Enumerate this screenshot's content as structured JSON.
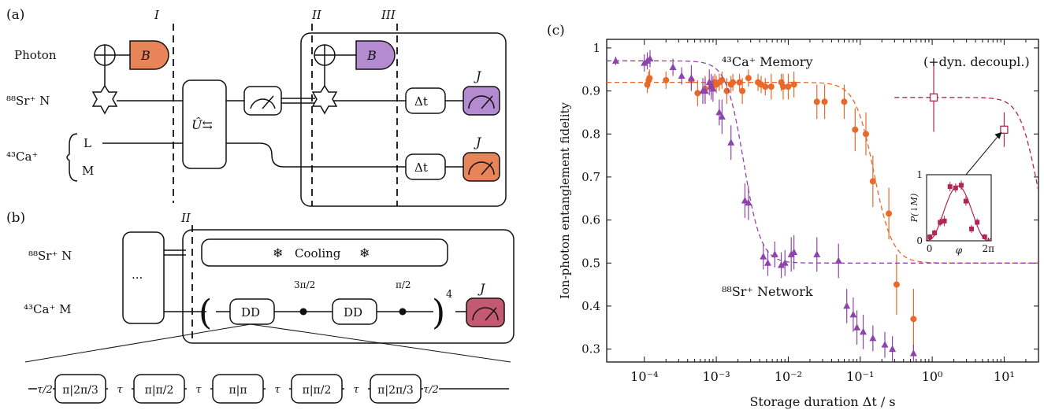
{
  "panel_a": {
    "label": "(a)",
    "rows": {
      "photon": "Photon",
      "sr": "⁸⁸Sr⁺ N",
      "ca": "⁴³Ca⁺",
      "ca_l": "L",
      "ca_m": "M"
    },
    "gate_b": "B",
    "swap": "Û⇆",
    "delay": "Δt",
    "meas": "J",
    "cuts": [
      "I",
      "II",
      "III"
    ],
    "colors": {
      "orange": "#E7845A",
      "purple": "#B48AD0"
    }
  },
  "panel_b": {
    "label": "(b)",
    "cut": "II",
    "rows": {
      "sr": "⁸⁸Sr⁺ N",
      "ca": "⁴³Ca⁺ M"
    },
    "ellipsis": "···",
    "cooling": "Cooling",
    "dd": "DD",
    "phase1": "3π/2",
    "phase2": "π/2",
    "power": "4",
    "meas": "J",
    "sequence": [
      "τ/2",
      "π|2π/3",
      "τ",
      "π|π/2",
      "τ",
      "π|π",
      "τ",
      "π|π/2",
      "τ",
      "π|2π/3",
      "τ/2"
    ],
    "colors": {
      "meas": "#C45A72",
      "snow": "#2A9BD6"
    }
  },
  "panel_c": {
    "label": "(c)"
  },
  "chart_data": {
    "type": "scatter",
    "xlabel": "Storage duration Δt / s",
    "ylabel": "Ion-photon entanglement fidelity",
    "xscale": "log",
    "xlim": [
      3e-05,
      30
    ],
    "ylim": [
      0.27,
      1.02
    ],
    "yticks": [
      0.3,
      0.4,
      0.5,
      0.6,
      0.7,
      0.8,
      0.9,
      1
    ],
    "xticks": [
      "10⁻⁴",
      "10⁻³",
      "10⁻²",
      "10⁻¹",
      "10⁰",
      "10¹"
    ],
    "grid": false,
    "annotations": [
      "⁴³Ca⁺ Memory",
      "(+dyn. decoupl.)",
      "⁸⁸Sr⁺ Network"
    ],
    "series": [
      {
        "color": "#E8692A",
        "marker": "circle",
        "points": [
          [
            0.00011,
            0.915
          ],
          [
            0.000115,
            0.925
          ],
          [
            0.000118,
            0.93
          ],
          [
            0.0002,
            0.925
          ],
          [
            0.00045,
            0.925
          ],
          [
            0.00055,
            0.895
          ],
          [
            0.0007,
            0.905
          ],
          [
            0.00085,
            0.91
          ],
          [
            0.00095,
            0.92
          ],
          [
            0.001,
            0.915
          ],
          [
            0.0011,
            0.92
          ],
          [
            0.0012,
            0.925
          ],
          [
            0.0014,
            0.9
          ],
          [
            0.0016,
            0.915
          ],
          [
            0.0017,
            0.92
          ],
          [
            0.0021,
            0.92
          ],
          [
            0.0023,
            0.9
          ],
          [
            0.0028,
            0.93
          ],
          [
            0.0038,
            0.92
          ],
          [
            0.0042,
            0.915
          ],
          [
            0.0048,
            0.91
          ],
          [
            0.0058,
            0.91
          ],
          [
            0.008,
            0.92
          ],
          [
            0.0085,
            0.91
          ],
          [
            0.01,
            0.91
          ],
          [
            0.012,
            0.915
          ],
          [
            0.025,
            0.875
          ],
          [
            0.032,
            0.875
          ],
          [
            0.06,
            0.875
          ],
          [
            0.085,
            0.81
          ],
          [
            0.12,
            0.8
          ],
          [
            0.15,
            0.69
          ],
          [
            0.25,
            0.615
          ],
          [
            0.32,
            0.45
          ],
          [
            0.55,
            0.37
          ]
        ],
        "errors": [
          0.02,
          0.02,
          0.02,
          0.02,
          0.02,
          0.03,
          0.03,
          0.02,
          0.02,
          0.02,
          0.02,
          0.02,
          0.03,
          0.02,
          0.02,
          0.02,
          0.03,
          0.02,
          0.02,
          0.02,
          0.02,
          0.03,
          0.02,
          0.03,
          0.03,
          0.03,
          0.04,
          0.04,
          0.04,
          0.05,
          0.05,
          0.06,
          0.06,
          0.07,
          0.07
        ],
        "fit": {
          "plateau": 0.92,
          "floor": 0.5,
          "t0": 0.155,
          "width": 0.13
        }
      },
      {
        "color": "#8E44AD",
        "marker": "triangle",
        "points": [
          [
            4e-05,
            0.97
          ],
          [
            0.0001,
            0.965
          ],
          [
            0.00011,
            0.97
          ],
          [
            0.00012,
            0.975
          ],
          [
            0.00025,
            0.955
          ],
          [
            0.00033,
            0.935
          ],
          [
            0.00045,
            0.93
          ],
          [
            0.00065,
            0.9
          ],
          [
            0.0007,
            0.9
          ],
          [
            0.0008,
            0.92
          ],
          [
            0.00085,
            0.91
          ],
          [
            0.0009,
            0.905
          ],
          [
            0.0011,
            0.85
          ],
          [
            0.0012,
            0.84
          ],
          [
            0.0016,
            0.78
          ],
          [
            0.0025,
            0.645
          ],
          [
            0.0028,
            0.64
          ],
          [
            0.0045,
            0.515
          ],
          [
            0.0052,
            0.5
          ],
          [
            0.0065,
            0.52
          ],
          [
            0.008,
            0.495
          ],
          [
            0.009,
            0.5
          ],
          [
            0.011,
            0.52
          ],
          [
            0.012,
            0.525
          ],
          [
            0.025,
            0.52
          ],
          [
            0.05,
            0.505
          ],
          [
            0.065,
            0.4
          ],
          [
            0.08,
            0.38
          ],
          [
            0.09,
            0.35
          ],
          [
            0.11,
            0.34
          ],
          [
            0.15,
            0.325
          ],
          [
            0.22,
            0.31
          ],
          [
            0.28,
            0.3
          ],
          [
            0.55,
            0.29
          ]
        ],
        "errors": [
          0.01,
          0.02,
          0.02,
          0.02,
          0.02,
          0.02,
          0.03,
          0.03,
          0.03,
          0.03,
          0.03,
          0.03,
          0.03,
          0.04,
          0.04,
          0.04,
          0.04,
          0.03,
          0.03,
          0.03,
          0.03,
          0.03,
          0.04,
          0.04,
          0.04,
          0.04,
          0.04,
          0.04,
          0.04,
          0.04,
          0.03,
          0.03,
          0.03,
          0.02
        ],
        "fit": {
          "plateau": 0.97,
          "floor": 0.5,
          "t0": 0.0024,
          "width": 0.12
        }
      },
      {
        "color": "#B22654",
        "marker": "open-square",
        "points": [
          [
            1.05,
            0.885
          ],
          [
            10,
            0.81
          ]
        ],
        "errors": [
          0.08,
          0.04
        ],
        "fit": {
          "plateau": 0.885,
          "floor": 0.5,
          "t0": 28,
          "width": 0.12
        }
      }
    ],
    "inset": {
      "xlabel": "φ",
      "ylabel": "P(↓M)",
      "xticks": [
        "0",
        "2π"
      ],
      "yticks": [
        "0",
        "1"
      ],
      "xlim": [
        -0.3,
        6.6
      ],
      "ylim": [
        0,
        1
      ],
      "color": "#B22654",
      "points": [
        [
          0.05,
          0.06
        ],
        [
          0.55,
          0.12
        ],
        [
          1.15,
          0.28
        ],
        [
          1.6,
          0.3
        ],
        [
          2.2,
          0.82
        ],
        [
          2.8,
          0.8
        ],
        [
          3.4,
          0.84
        ],
        [
          3.9,
          0.6
        ],
        [
          4.5,
          0.18
        ],
        [
          5.1,
          0.28
        ],
        [
          5.9,
          0.06
        ]
      ],
      "errors": [
        0.04,
        0.05,
        0.06,
        0.08,
        0.07,
        0.07,
        0.07,
        0.07,
        0.06,
        0.06,
        0.04
      ],
      "fit": {
        "amp": 0.41,
        "offset": 0.42,
        "phase_peak": 3.05
      }
    }
  }
}
